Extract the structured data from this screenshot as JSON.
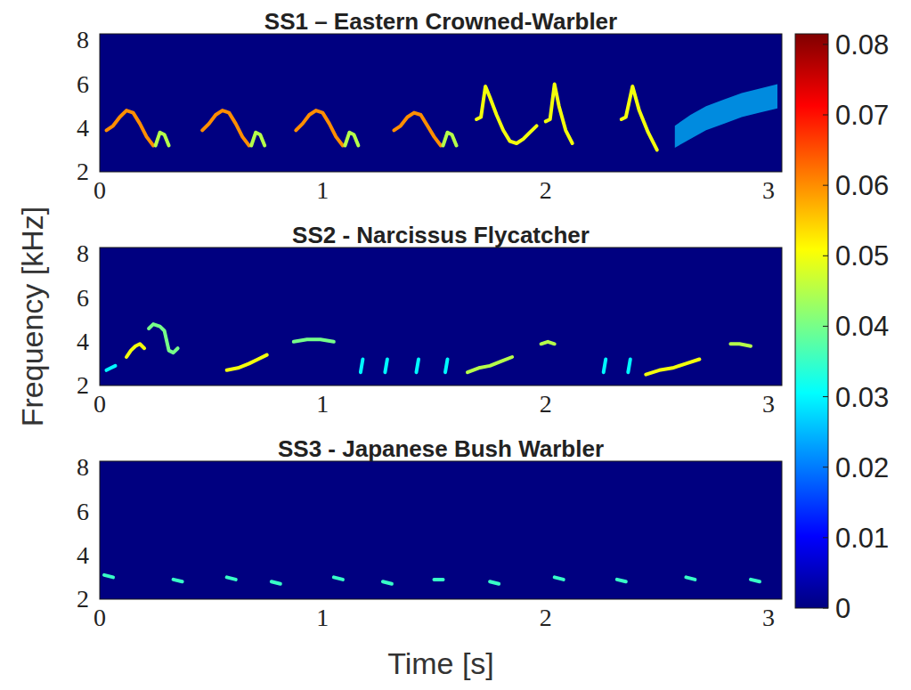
{
  "chart_data": [
    {
      "type": "spectrogram",
      "title": "SS1 – Eastern Crowned-Warbler",
      "xlim": [
        0,
        3.06
      ],
      "ylim": [
        2,
        8.3
      ],
      "xticks": [
        0,
        1,
        2,
        3
      ],
      "yticks": [
        2,
        4,
        6,
        8
      ],
      "series": [
        {
          "type": "line",
          "intensity": 0.06,
          "x": [
            0.03,
            0.06,
            0.09,
            0.12,
            0.15,
            0.18,
            0.21,
            0.24
          ],
          "values": [
            3.9,
            4.1,
            4.5,
            4.8,
            4.7,
            4.2,
            3.6,
            3.2
          ]
        },
        {
          "type": "line",
          "intensity": 0.045,
          "x": [
            0.25,
            0.27,
            0.29,
            0.31
          ],
          "values": [
            3.2,
            3.8,
            3.7,
            3.2
          ]
        },
        {
          "type": "line",
          "intensity": 0.06,
          "x": [
            0.46,
            0.49,
            0.52,
            0.55,
            0.58,
            0.61,
            0.64,
            0.67
          ],
          "values": [
            3.9,
            4.2,
            4.6,
            4.8,
            4.7,
            4.2,
            3.6,
            3.2
          ]
        },
        {
          "type": "line",
          "intensity": 0.045,
          "x": [
            0.68,
            0.7,
            0.72,
            0.74
          ],
          "values": [
            3.2,
            3.8,
            3.7,
            3.2
          ]
        },
        {
          "type": "line",
          "intensity": 0.06,
          "x": [
            0.88,
            0.91,
            0.94,
            0.97,
            1.0,
            1.03,
            1.06,
            1.09
          ],
          "values": [
            3.9,
            4.2,
            4.6,
            4.8,
            4.7,
            4.2,
            3.6,
            3.2
          ]
        },
        {
          "type": "line",
          "intensity": 0.045,
          "x": [
            1.1,
            1.12,
            1.14,
            1.16
          ],
          "values": [
            3.2,
            3.8,
            3.7,
            3.2
          ]
        },
        {
          "type": "line",
          "intensity": 0.06,
          "x": [
            1.32,
            1.35,
            1.38,
            1.41,
            1.44,
            1.47,
            1.5,
            1.53
          ],
          "values": [
            3.9,
            4.1,
            4.5,
            4.7,
            4.6,
            4.1,
            3.6,
            3.2
          ]
        },
        {
          "type": "line",
          "intensity": 0.045,
          "x": [
            1.54,
            1.56,
            1.58,
            1.6
          ],
          "values": [
            3.2,
            3.8,
            3.7,
            3.2
          ]
        },
        {
          "type": "line",
          "intensity": 0.05,
          "x": [
            1.69,
            1.71,
            1.73,
            1.75,
            1.78,
            1.81,
            1.84,
            1.87,
            1.9,
            1.93,
            1.96
          ],
          "values": [
            4.4,
            4.5,
            5.9,
            5.4,
            4.6,
            3.9,
            3.4,
            3.3,
            3.5,
            3.8,
            4.1
          ]
        },
        {
          "type": "line",
          "intensity": 0.05,
          "x": [
            2.0,
            2.02,
            2.04,
            2.06,
            2.09,
            2.12
          ],
          "values": [
            4.3,
            4.4,
            6.0,
            5.0,
            3.9,
            3.3
          ]
        },
        {
          "type": "line",
          "intensity": 0.05,
          "x": [
            2.34,
            2.36,
            2.39,
            2.42,
            2.46,
            2.5
          ],
          "values": [
            4.4,
            4.5,
            5.9,
            4.8,
            3.8,
            3.0
          ]
        },
        {
          "type": "band",
          "intensity": 0.025,
          "x": [
            2.58,
            2.65,
            2.72,
            2.8,
            2.88,
            2.96,
            3.04
          ],
          "values": [
            3.1,
            3.5,
            3.9,
            4.2,
            4.5,
            4.7,
            4.9
          ],
          "upper": [
            4.1,
            4.6,
            5.0,
            5.3,
            5.6,
            5.8,
            6.0
          ]
        }
      ]
    },
    {
      "type": "spectrogram",
      "title": "SS2 - Narcissus Flycatcher",
      "xlim": [
        0,
        3.06
      ],
      "ylim": [
        2,
        8.3
      ],
      "xticks": [
        0,
        1,
        2,
        3
      ],
      "yticks": [
        2,
        4,
        6,
        8
      ],
      "series": [
        {
          "type": "line",
          "intensity": 0.03,
          "x": [
            0.03,
            0.05,
            0.07
          ],
          "values": [
            2.7,
            2.8,
            2.9
          ]
        },
        {
          "type": "line",
          "intensity": 0.05,
          "x": [
            0.12,
            0.14,
            0.16,
            0.18,
            0.2
          ],
          "values": [
            3.3,
            3.6,
            3.8,
            3.9,
            3.7
          ]
        },
        {
          "type": "line",
          "intensity": 0.04,
          "x": [
            0.22,
            0.24,
            0.27,
            0.29,
            0.31,
            0.33,
            0.35
          ],
          "values": [
            4.6,
            4.8,
            4.7,
            4.5,
            3.6,
            3.5,
            3.7
          ]
        },
        {
          "type": "line",
          "intensity": 0.05,
          "x": [
            0.57,
            0.62,
            0.67,
            0.71,
            0.75
          ],
          "values": [
            2.7,
            2.8,
            3.0,
            3.2,
            3.4
          ]
        },
        {
          "type": "line",
          "intensity": 0.04,
          "x": [
            0.87,
            0.93,
            0.99,
            1.05
          ],
          "values": [
            4.0,
            4.1,
            4.1,
            4.0
          ]
        },
        {
          "type": "line",
          "intensity": 0.03,
          "x": [
            1.17,
            1.18
          ],
          "values": [
            2.6,
            3.2
          ]
        },
        {
          "type": "line",
          "intensity": 0.03,
          "x": [
            1.28,
            1.29
          ],
          "values": [
            2.6,
            3.2
          ]
        },
        {
          "type": "line",
          "intensity": 0.03,
          "x": [
            1.42,
            1.43
          ],
          "values": [
            2.6,
            3.2
          ]
        },
        {
          "type": "line",
          "intensity": 0.03,
          "x": [
            1.55,
            1.56
          ],
          "values": [
            2.6,
            3.2
          ]
        },
        {
          "type": "line",
          "intensity": 0.045,
          "x": [
            1.65,
            1.7,
            1.75,
            1.8,
            1.85
          ],
          "values": [
            2.6,
            2.8,
            2.9,
            3.1,
            3.3
          ]
        },
        {
          "type": "line",
          "intensity": 0.045,
          "x": [
            1.98,
            2.01,
            2.04
          ],
          "values": [
            3.9,
            4.0,
            3.9
          ]
        },
        {
          "type": "line",
          "intensity": 0.03,
          "x": [
            2.26,
            2.27
          ],
          "values": [
            2.6,
            3.2
          ]
        },
        {
          "type": "line",
          "intensity": 0.03,
          "x": [
            2.37,
            2.38
          ],
          "values": [
            2.6,
            3.2
          ]
        },
        {
          "type": "line",
          "intensity": 0.05,
          "x": [
            2.45,
            2.51,
            2.57,
            2.63,
            2.69
          ],
          "values": [
            2.5,
            2.7,
            2.8,
            3.0,
            3.2
          ]
        },
        {
          "type": "line",
          "intensity": 0.045,
          "x": [
            2.83,
            2.87,
            2.92
          ],
          "values": [
            3.9,
            3.9,
            3.8
          ]
        }
      ]
    },
    {
      "type": "spectrogram",
      "title": "SS3 - Japanese Bush Warbler",
      "xlim": [
        0,
        3.06
      ],
      "ylim": [
        2,
        8.3
      ],
      "xticks": [
        0,
        1,
        2,
        3
      ],
      "yticks": [
        2,
        4,
        6,
        8
      ],
      "series": [
        {
          "type": "line",
          "intensity": 0.035,
          "x": [
            0.02,
            0.06
          ],
          "values": [
            3.1,
            3.0
          ]
        },
        {
          "type": "line",
          "intensity": 0.035,
          "x": [
            0.33,
            0.37
          ],
          "values": [
            2.9,
            2.8
          ]
        },
        {
          "type": "line",
          "intensity": 0.035,
          "x": [
            0.57,
            0.61
          ],
          "values": [
            3.0,
            2.9
          ]
        },
        {
          "type": "line",
          "intensity": 0.035,
          "x": [
            0.77,
            0.81
          ],
          "values": [
            2.8,
            2.7
          ]
        },
        {
          "type": "line",
          "intensity": 0.035,
          "x": [
            1.05,
            1.09
          ],
          "values": [
            3.0,
            2.9
          ]
        },
        {
          "type": "line",
          "intensity": 0.035,
          "x": [
            1.27,
            1.31
          ],
          "values": [
            2.8,
            2.7
          ]
        },
        {
          "type": "line",
          "intensity": 0.035,
          "x": [
            1.5,
            1.54
          ],
          "values": [
            2.9,
            2.9
          ]
        },
        {
          "type": "line",
          "intensity": 0.035,
          "x": [
            1.75,
            1.79
          ],
          "values": [
            2.8,
            2.7
          ]
        },
        {
          "type": "line",
          "intensity": 0.035,
          "x": [
            2.04,
            2.08
          ],
          "values": [
            3.0,
            2.9
          ]
        },
        {
          "type": "line",
          "intensity": 0.035,
          "x": [
            2.32,
            2.36
          ],
          "values": [
            2.9,
            2.8
          ]
        },
        {
          "type": "line",
          "intensity": 0.035,
          "x": [
            2.63,
            2.67
          ],
          "values": [
            3.0,
            2.9
          ]
        },
        {
          "type": "line",
          "intensity": 0.035,
          "x": [
            2.92,
            2.96
          ],
          "values": [
            2.9,
            2.8
          ]
        }
      ]
    }
  ],
  "xlabel": "Time [s]",
  "ylabel": "Frequency [kHz]",
  "colorbar": {
    "range": [
      0,
      0.0815
    ],
    "ticks": [
      0,
      0.01,
      0.02,
      0.03,
      0.04,
      0.05,
      0.06,
      0.07,
      0.08
    ]
  }
}
